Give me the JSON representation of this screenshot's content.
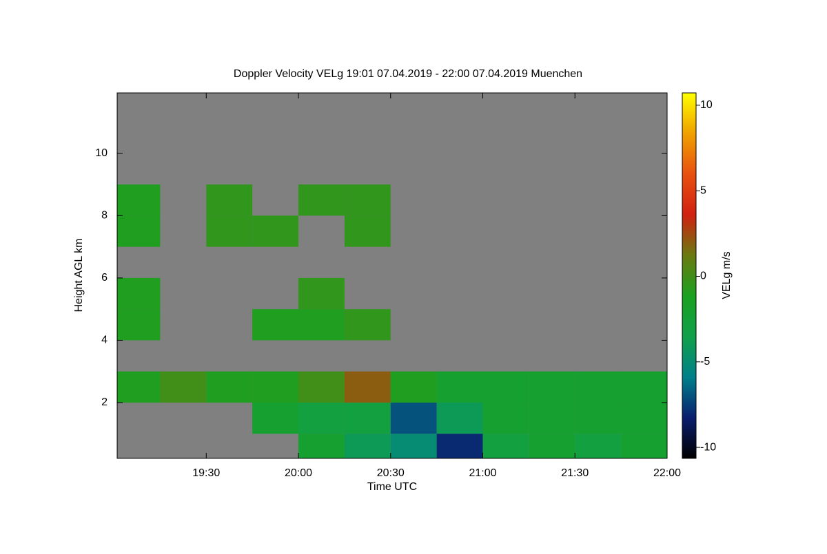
{
  "chart_data": {
    "type": "heatmap",
    "title": "Doppler Velocity VELg   19:01 07.04.2019 - 22:00 07.04.2019 Muenchen",
    "x_label": "Time UTC",
    "y_label": "Height AGL km",
    "colorbar_label": "VELg m/s",
    "x": [
      19.125,
      19.375,
      19.625,
      19.875,
      20.125,
      20.375,
      20.625,
      20.875,
      21.125,
      21.375,
      21.625,
      21.875
    ],
    "y": [
      0.5,
      1.5,
      2.5,
      3.5,
      4.5,
      5.5,
      6.5,
      7.5,
      8.5,
      9.5,
      10.5,
      11.5
    ],
    "z": [
      [
        null,
        null,
        null,
        null,
        -2,
        -4,
        -5,
        -8,
        -3,
        -2,
        -3,
        -2
      ],
      [
        null,
        null,
        null,
        -2,
        -3,
        -3,
        -7,
        -4,
        -2,
        -2,
        -2,
        -2
      ],
      [
        -1,
        0,
        -1,
        -1,
        0,
        2,
        -1,
        -2,
        -2,
        -2,
        -2,
        -2
      ],
      [
        null,
        null,
        null,
        null,
        null,
        null,
        null,
        null,
        null,
        null,
        null,
        null
      ],
      [
        -1,
        null,
        null,
        -1,
        -1,
        -0.5,
        null,
        null,
        null,
        null,
        null,
        null
      ],
      [
        -1,
        null,
        null,
        null,
        -0.5,
        null,
        null,
        null,
        null,
        null,
        null,
        null
      ],
      [
        null,
        null,
        null,
        null,
        null,
        null,
        null,
        null,
        null,
        null,
        null,
        null
      ],
      [
        -1,
        null,
        -0.5,
        -0.5,
        null,
        -0.5,
        null,
        null,
        null,
        null,
        null,
        null
      ],
      [
        -1,
        null,
        -0.5,
        null,
        -0.5,
        -0.5,
        null,
        null,
        null,
        null,
        null,
        null
      ],
      [
        null,
        null,
        null,
        null,
        null,
        null,
        null,
        null,
        null,
        null,
        null,
        null
      ],
      [
        null,
        null,
        null,
        null,
        null,
        null,
        null,
        null,
        null,
        null,
        null,
        null
      ],
      [
        null,
        null,
        null,
        null,
        null,
        null,
        null,
        null,
        null,
        null,
        null,
        null
      ]
    ],
    "xlim": [
      19.0167,
      22
    ],
    "xticks": [
      {
        "value": 19.5,
        "label": "19:30"
      },
      {
        "value": 20,
        "label": "20:00"
      },
      {
        "value": 20.5,
        "label": "20:30"
      },
      {
        "value": 21,
        "label": "21:00"
      },
      {
        "value": 21.5,
        "label": "21:30"
      },
      {
        "value": 22,
        "label": "22:00"
      }
    ],
    "ylim": [
      0.21,
      11.94
    ],
    "yticks": [
      2,
      4,
      6,
      8,
      10
    ],
    "clim": [
      -10.64,
      10.72
    ],
    "cticks": [
      -10,
      -5,
      0,
      5,
      10
    ],
    "colorscale": [
      "#000000",
      "#0a1e6e",
      "#00808a",
      "#10a04a",
      "#1aa020",
      "#6a7a10",
      "#d02010",
      "#e85010",
      "#f0a000",
      "#ffff00"
    ],
    "missing_color": "#808080"
  }
}
